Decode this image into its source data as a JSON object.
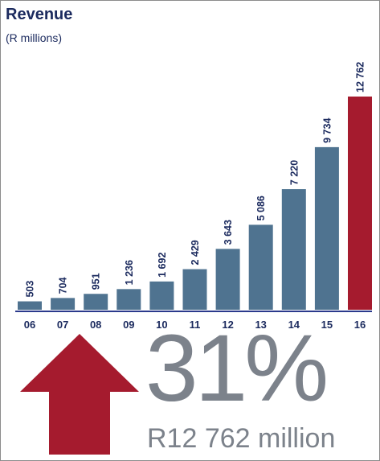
{
  "chart_data": {
    "type": "bar",
    "title": "Revenue",
    "subtitle": "(R millions)",
    "categories": [
      "06",
      "07",
      "08",
      "09",
      "10",
      "11",
      "12",
      "13",
      "14",
      "15",
      "16"
    ],
    "values": [
      503,
      704,
      951,
      1236,
      1692,
      2429,
      3643,
      5086,
      7220,
      9734,
      12762
    ],
    "value_labels": [
      "503",
      "704",
      "951",
      "1 236",
      "1 692",
      "2 429",
      "3 643",
      "5 086",
      "7 220",
      "9 734",
      "12 762"
    ],
    "ylim": [
      0,
      12762
    ],
    "colors": {
      "default": "#4f7390",
      "highlight": "#a51b2e",
      "text": "#1b2a5e",
      "axis": "#2b3a8c"
    },
    "highlight_index": 10,
    "grid": false
  },
  "callout": {
    "percent": "31%",
    "caption": "R12 762 million",
    "arrow_icon": "up-arrow-icon",
    "arrow_color": "#a51b2e",
    "text_color": "#7c828b"
  }
}
